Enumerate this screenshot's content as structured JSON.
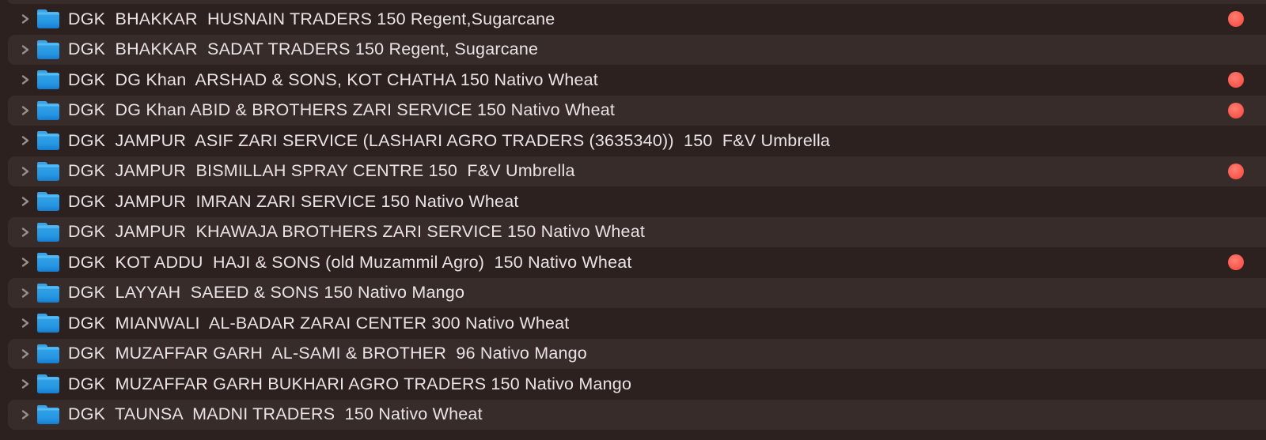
{
  "window": {
    "app": "Finder",
    "view": "list"
  },
  "colors": {
    "background": "#2D2120",
    "row_alt_background": "#382C2A",
    "text": "#E9E4E3",
    "folder_blue": "#2E9FE6",
    "chevron_gray": "#948E8C",
    "tag_red": "#FB5549"
  },
  "icons": {
    "disclosure": "chevron-right-icon",
    "item": "folder-icon",
    "tag": "red-tag-dot"
  },
  "list": {
    "rows": [
      {
        "label": "DGK  BHAKKAR  HUSNAIN TRADERS 150 Regent,Sugarcane",
        "tag": true
      },
      {
        "label": "DGK  BHAKKAR  SADAT TRADERS 150 Regent, Sugarcane",
        "tag": false
      },
      {
        "label": "DGK  DG Khan  ARSHAD & SONS, KOT CHATHA 150 Nativo Wheat",
        "tag": true
      },
      {
        "label": "DGK  DG Khan ABID & BROTHERS ZARI SERVICE 150 Nativo Wheat",
        "tag": true
      },
      {
        "label": "DGK  JAMPUR  ASIF ZARI SERVICE (LASHARI AGRO TRADERS (3635340))  150  F&V Umbrella",
        "tag": false
      },
      {
        "label": "DGK  JAMPUR  BISMILLAH SPRAY CENTRE 150  F&V Umbrella",
        "tag": true
      },
      {
        "label": "DGK  JAMPUR  IMRAN ZARI SERVICE 150 Nativo Wheat",
        "tag": false
      },
      {
        "label": "DGK  JAMPUR  KHAWAJA BROTHERS ZARI SERVICE 150 Nativo Wheat",
        "tag": false
      },
      {
        "label": "DGK  KOT ADDU  HAJI & SONS (old Muzammil Agro)  150 Nativo Wheat",
        "tag": true
      },
      {
        "label": "DGK  LAYYAH  SAEED & SONS 150 Nativo Mango",
        "tag": false
      },
      {
        "label": "DGK  MIANWALI  AL-BADAR ZARAI CENTER 300 Nativo Wheat",
        "tag": false
      },
      {
        "label": "DGK  MUZAFFAR GARH  AL-SAMI & BROTHER  96 Nativo Mango",
        "tag": false
      },
      {
        "label": "DGK  MUZAFFAR GARH BUKHARI AGRO TRADERS 150 Nativo Mango",
        "tag": false
      },
      {
        "label": "DGK  TAUNSA  MADNI TRADERS  150 Nativo Wheat",
        "tag": false
      }
    ]
  }
}
